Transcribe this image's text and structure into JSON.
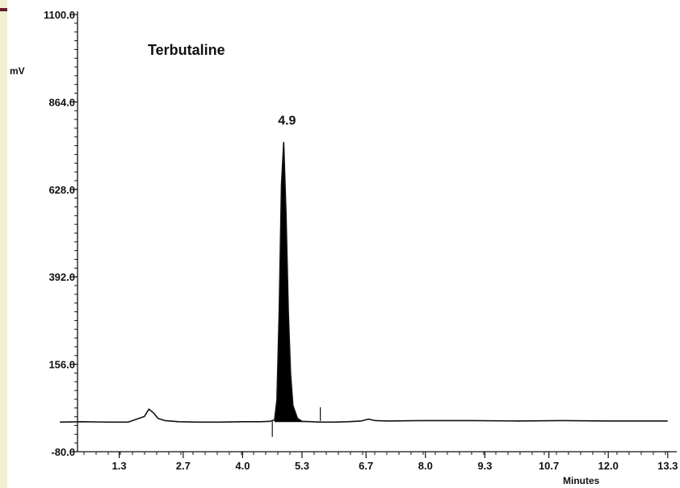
{
  "chart_data": {
    "type": "line",
    "title": "Terbutaline",
    "ylabel": "mV",
    "xlabel": "Minutes",
    "ylim": [
      -80.0,
      1100.0
    ],
    "yticks": [
      "1100.0",
      "864.0",
      "628.0",
      "392.0",
      "156.0",
      "-80.0"
    ],
    "ytick_values": [
      1100.0,
      864.0,
      628.0,
      392.0,
      156.0,
      -80.0
    ],
    "xlim": [
      0.0,
      13.3
    ],
    "xticks": [
      "1.3",
      "2.7",
      "4.0",
      "5.3",
      "6.7",
      "8.0",
      "9.3",
      "10.7",
      "12.0",
      "13.3"
    ],
    "xtick_values": [
      1.3,
      2.7,
      4.0,
      5.3,
      6.7,
      8.0,
      9.3,
      10.7,
      12.0,
      13.3
    ],
    "series": [
      {
        "x": [
          0.0,
          0.5,
          1.0,
          1.5,
          1.85,
          1.95,
          2.05,
          2.15,
          2.3,
          2.6,
          3.0,
          3.5,
          4.0,
          4.4,
          4.6,
          4.7,
          4.75,
          4.8,
          4.85,
          4.9,
          4.95,
          5.0,
          5.05,
          5.1,
          5.2,
          5.3,
          5.5,
          5.7,
          6.0,
          6.3,
          6.6,
          6.75,
          6.9,
          7.2,
          8.0,
          9.0,
          10.0,
          11.0,
          12.0,
          13.3
        ],
        "y": [
          0,
          1,
          0,
          0,
          15,
          35,
          25,
          10,
          4,
          1,
          0,
          0,
          1,
          1,
          2,
          6,
          60,
          300,
          640,
          755,
          560,
          300,
          130,
          45,
          10,
          2,
          1,
          0,
          0,
          1,
          3,
          8,
          4,
          3,
          4,
          4,
          3,
          4,
          3,
          3
        ]
      }
    ],
    "annotations": [
      {
        "text": "4.9",
        "x": 4.9,
        "y": 755
      }
    ],
    "shaded_peak": {
      "x_start": 4.65,
      "x_end": 5.55
    },
    "markers": [
      {
        "x": 4.65,
        "y_from": 3,
        "y_to": -40
      },
      {
        "x": 5.7,
        "y_from": 3,
        "y_to": 40
      }
    ],
    "grid": false,
    "colors": {
      "line": "#111111",
      "peak_fill": "#000000",
      "left_strip": "#f2efcf",
      "accent": "#6b1a26"
    }
  }
}
